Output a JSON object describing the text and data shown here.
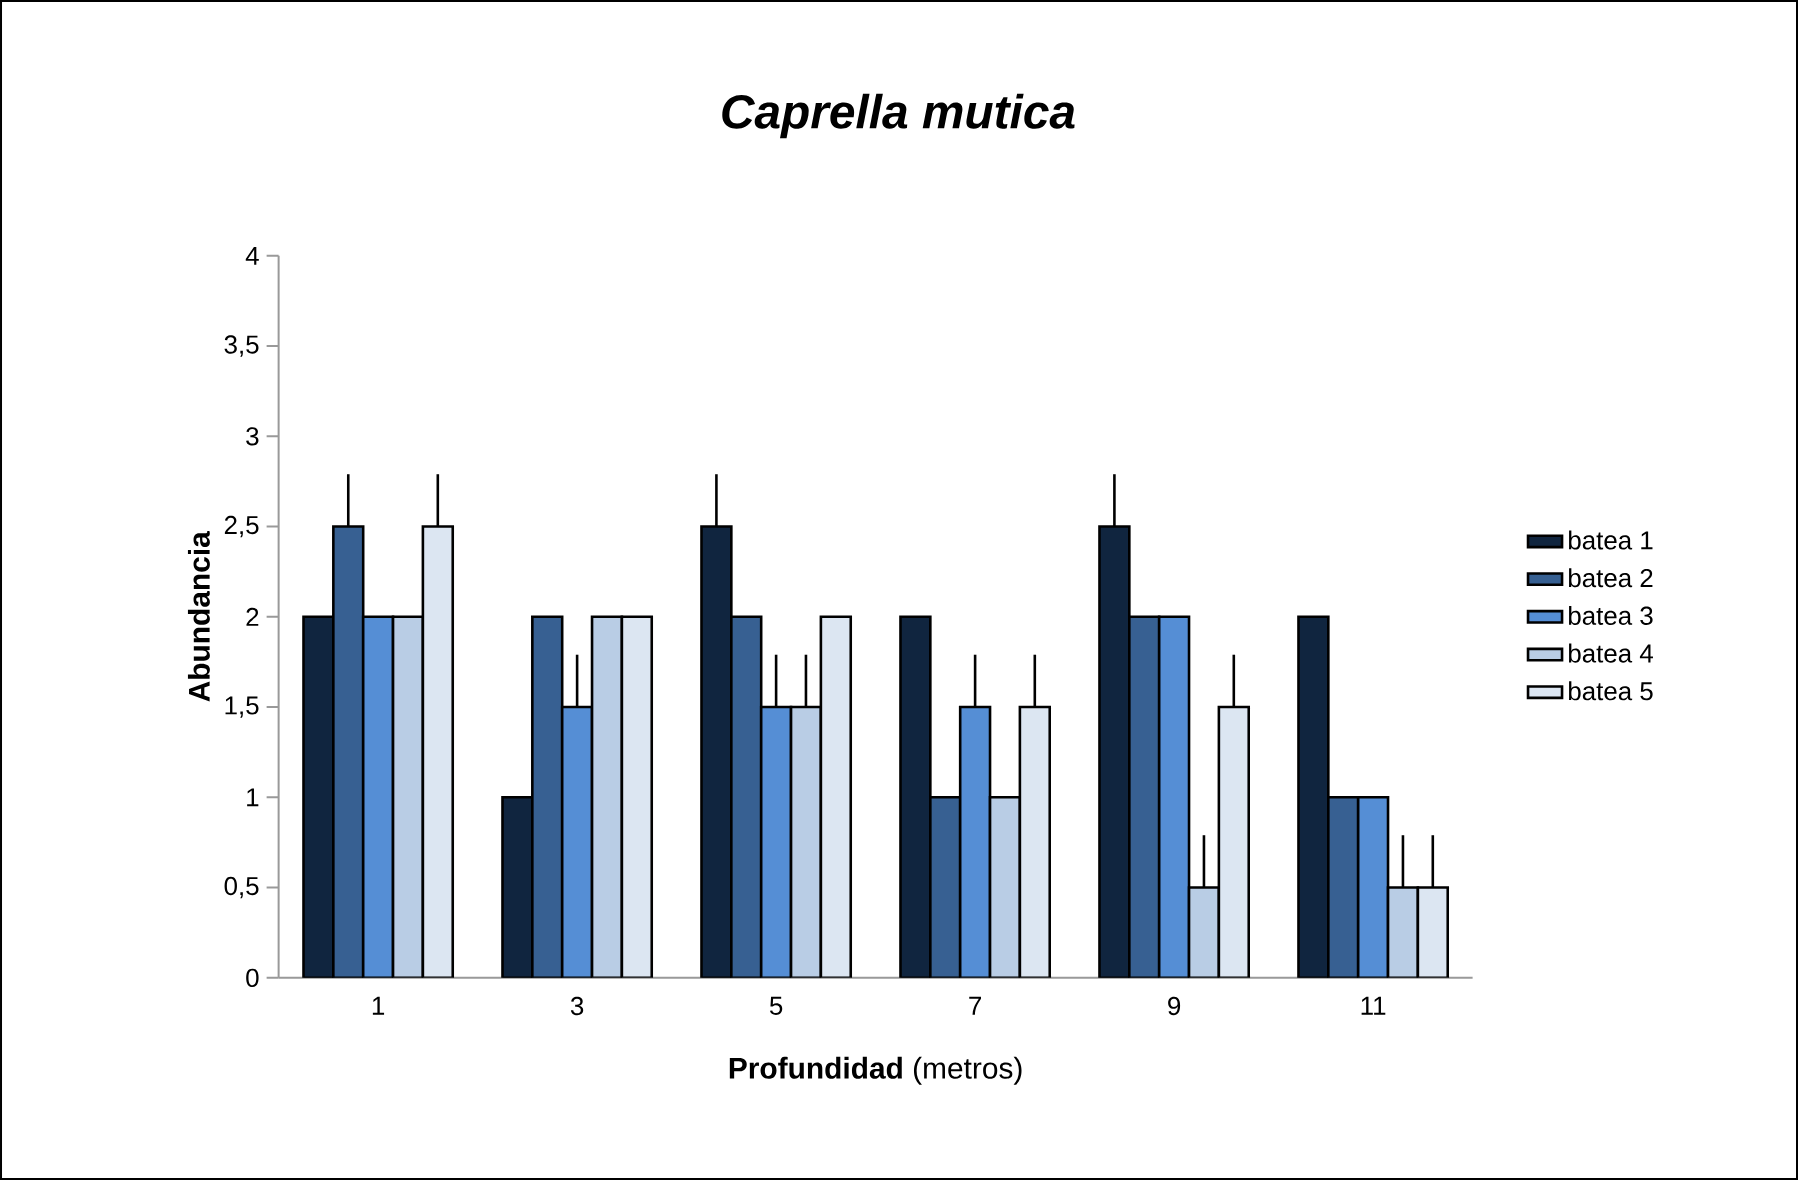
{
  "chart_data": {
    "type": "bar",
    "title": "*Caprella mutica*",
    "xlabel": "**Profundidad** (metros)",
    "ylabel": "Abundancia",
    "categories": [
      "1",
      "3",
      "5",
      "7",
      "9",
      "11"
    ],
    "series": [
      {
        "name": "batea 1",
        "color": "#10253f",
        "values": [
          2,
          1,
          2.5,
          2,
          2.5,
          2
        ],
        "errors": [
          null,
          null,
          [
            2.5,
            2.79
          ],
          null,
          [
            2.5,
            2.79
          ],
          null
        ]
      },
      {
        "name": "batea 2",
        "color": "#376092",
        "values": [
          2.5,
          2,
          2,
          1,
          2,
          1
        ],
        "errors": [
          [
            2.5,
            2.79
          ],
          null,
          null,
          null,
          null,
          null
        ]
      },
      {
        "name": "batea 3",
        "color": "#558ed5",
        "values": [
          2,
          1.5,
          1.5,
          1.5,
          2,
          1
        ],
        "errors": [
          null,
          [
            1.5,
            1.79
          ],
          [
            1.5,
            1.79
          ],
          [
            1.5,
            1.79
          ],
          null,
          null
        ]
      },
      {
        "name": "batea 4",
        "color": "#b9cde5",
        "values": [
          2,
          2,
          1.5,
          1,
          0.5,
          0.5
        ],
        "errors": [
          null,
          null,
          [
            1.5,
            1.79
          ],
          null,
          [
            0.5,
            0.79
          ],
          [
            0.5,
            0.79
          ]
        ]
      },
      {
        "name": "batea 5",
        "color": "#dce6f2",
        "values": [
          2.5,
          2,
          2,
          1.5,
          1.5,
          0.5
        ],
        "errors": [
          [
            2.5,
            2.79
          ],
          null,
          null,
          [
            1.5,
            1.79
          ],
          [
            1.5,
            1.79
          ],
          [
            0.5,
            0.79
          ]
        ]
      }
    ],
    "ylim": [
      0,
      4
    ],
    "yticks": [
      0,
      {
        "value": 0.5,
        "label": "0,5"
      },
      1,
      {
        "value": 1.5,
        "label": "1,5"
      },
      2,
      {
        "value": 2.5,
        "label": "2,5"
      },
      3,
      {
        "value": 3.5,
        "label": "3,5"
      },
      4
    ],
    "grid": false,
    "legend": "right"
  }
}
